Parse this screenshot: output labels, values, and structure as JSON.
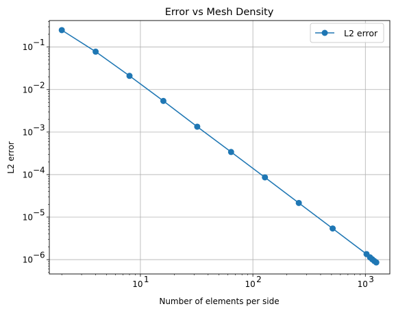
{
  "chart_data": {
    "type": "line",
    "title": "Error vs Mesh Density",
    "xlabel": "Number of elements per side",
    "ylabel": "L2 error",
    "xscale": "log",
    "yscale": "log",
    "xlim": [
      1.55,
      1650
    ],
    "ylim": [
      4.6e-07,
      0.42
    ],
    "grid": true,
    "legend_position": "top-right",
    "x_ticks": [
      {
        "value": 10,
        "base": "10",
        "exp": "1"
      },
      {
        "value": 100,
        "base": "10",
        "exp": "2"
      },
      {
        "value": 1000,
        "base": "10",
        "exp": "3"
      }
    ],
    "y_ticks": [
      {
        "value": 0.1,
        "base": "10",
        "exp": "−1"
      },
      {
        "value": 0.01,
        "base": "10",
        "exp": "−2"
      },
      {
        "value": 0.001,
        "base": "10",
        "exp": "−3"
      },
      {
        "value": 0.0001,
        "base": "10",
        "exp": "−4"
      },
      {
        "value": 1e-05,
        "base": "10",
        "exp": "−5"
      },
      {
        "value": 1e-06,
        "base": "10",
        "exp": "−6"
      }
    ],
    "series": [
      {
        "name": "L2 error",
        "color": "#1f77b4",
        "marker": "circle",
        "x": [
          2,
          4,
          8,
          16,
          32,
          64,
          128,
          256,
          512,
          1024,
          1100,
          1150,
          1200,
          1250
        ],
        "y": [
          0.25,
          0.078,
          0.021,
          0.0054,
          0.00134,
          0.00034,
          8.6e-05,
          2.15e-05,
          5.4e-06,
          1.35e-06,
          1.13e-06,
          1.02e-06,
          9.3e-07,
          8.6e-07
        ]
      }
    ]
  }
}
